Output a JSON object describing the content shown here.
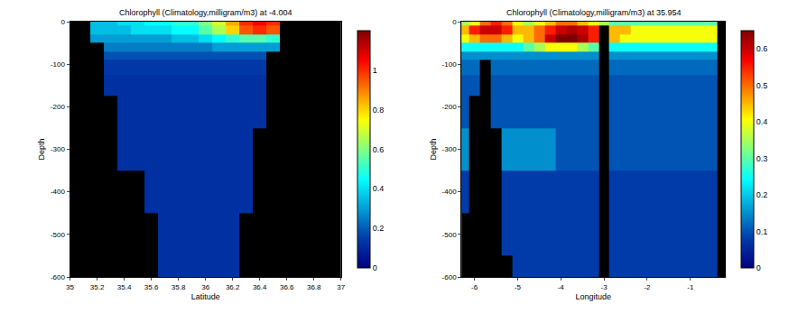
{
  "chart_data": [
    {
      "type": "heatmap",
      "title": "Chlorophyll (Climatology,milligram/m3) at -4.004",
      "x_label": "Latitude",
      "y_label": "Depth",
      "color": "Jet",
      "xlim": [
        35,
        37
      ],
      "xticks": [
        35,
        35.2,
        35.4,
        35.6,
        35.8,
        36,
        36.2,
        36.4,
        36.6,
        36.8,
        37
      ],
      "ylim": [
        -600,
        0
      ],
      "yticks": [
        0,
        -100,
        -200,
        -300,
        -400,
        -500,
        -600
      ],
      "cells": {
        "x": [
          35,
          35.1,
          35.2,
          35.3,
          35.4,
          35.5,
          35.6,
          35.7,
          35.8,
          35.9,
          36,
          36.1,
          36.2,
          36.3,
          36.4,
          36.5,
          36.6,
          36.7,
          36.8,
          36.9,
          37
        ],
        "y": [
          0,
          -20,
          -40,
          -60,
          -80,
          -100,
          -150,
          -200,
          -300,
          -400,
          -500,
          -600
        ],
        "z": [
          [
            null,
            null,
            0.35,
            0.35,
            0.4,
            0.4,
            0.45,
            0.45,
            0.5,
            0.5,
            0.6,
            0.7,
            0.85,
            1.0,
            1.05,
            1.0,
            null,
            null,
            null,
            null,
            null
          ],
          [
            null,
            null,
            0.35,
            0.35,
            0.35,
            0.4,
            0.4,
            0.4,
            0.45,
            0.45,
            0.55,
            0.65,
            0.8,
            0.95,
            1.0,
            0.95,
            null,
            null,
            null,
            null,
            null
          ],
          [
            null,
            null,
            0.3,
            0.3,
            0.3,
            0.3,
            0.3,
            0.3,
            0.35,
            0.35,
            0.4,
            0.45,
            0.5,
            0.55,
            0.55,
            0.5,
            null,
            null,
            null,
            null,
            null
          ],
          [
            null,
            null,
            null,
            0.25,
            0.25,
            0.25,
            0.25,
            0.25,
            0.25,
            0.25,
            0.25,
            0.3,
            0.3,
            0.3,
            0.3,
            0.3,
            null,
            null,
            null,
            null,
            null
          ],
          [
            null,
            null,
            null,
            0.18,
            0.18,
            0.18,
            0.18,
            0.18,
            0.18,
            0.18,
            0.18,
            0.18,
            0.18,
            0.18,
            0.18,
            null,
            null,
            null,
            null,
            null,
            null
          ],
          [
            null,
            null,
            null,
            0.14,
            0.14,
            0.14,
            0.14,
            0.14,
            0.14,
            0.14,
            0.14,
            0.14,
            0.14,
            0.14,
            0.14,
            null,
            null,
            null,
            null,
            null,
            null
          ],
          [
            null,
            null,
            null,
            0.12,
            0.12,
            0.12,
            0.12,
            0.12,
            0.12,
            0.12,
            0.12,
            0.12,
            0.12,
            0.12,
            0.12,
            null,
            null,
            null,
            null,
            null,
            null
          ],
          [
            null,
            null,
            null,
            null,
            0.12,
            0.12,
            0.12,
            0.12,
            0.12,
            0.12,
            0.12,
            0.12,
            0.12,
            0.12,
            0.12,
            null,
            null,
            null,
            null,
            null,
            null
          ],
          [
            null,
            null,
            null,
            null,
            0.12,
            0.12,
            0.12,
            0.12,
            0.12,
            0.12,
            0.12,
            0.12,
            0.12,
            0.12,
            null,
            null,
            null,
            null,
            null,
            null,
            null
          ],
          [
            null,
            null,
            null,
            null,
            null,
            null,
            0.12,
            0.12,
            0.12,
            0.12,
            0.12,
            0.12,
            0.12,
            0.12,
            null,
            null,
            null,
            null,
            null,
            null,
            null
          ],
          [
            null,
            null,
            null,
            null,
            null,
            null,
            null,
            0.12,
            0.12,
            0.12,
            0.12,
            0.12,
            0.12,
            null,
            null,
            null,
            null,
            null,
            null,
            null,
            null
          ],
          [
            null,
            null,
            null,
            null,
            null,
            null,
            null,
            0.12,
            0.12,
            0.12,
            0.12,
            0.12,
            0.12,
            null,
            null,
            null,
            null,
            null,
            null,
            null,
            null
          ]
        ]
      },
      "colorbar": {
        "range": [
          0,
          1.2
        ],
        "ticks": [
          0,
          0.2,
          0.4,
          0.6,
          0.8,
          1
        ]
      }
    },
    {
      "type": "heatmap",
      "title": "Chlorophyll (Climatology,milligram/m3) at 35.954",
      "x_label": "Longitude",
      "y_label": "Depth",
      "color": "Jet",
      "xlim": [
        -6.3,
        -0.2
      ],
      "xticks": [
        -6,
        -5,
        -4,
        -3,
        -2,
        -1
      ],
      "ylim": [
        -600,
        0
      ],
      "yticks": [
        0,
        -100,
        -200,
        -300,
        -400,
        -500,
        -600
      ],
      "cells": {
        "x": [
          -6.25,
          -6,
          -5.75,
          -5.5,
          -5.25,
          -5,
          -4.75,
          -4.5,
          -4.25,
          -4,
          -3.75,
          -3.5,
          -3.25,
          -3,
          -2.75,
          -2.5,
          -2.25,
          -2,
          -1.75,
          -1.5,
          -1.25,
          -1,
          -0.75,
          -0.5,
          -0.25
        ],
        "y": [
          0,
          -20,
          -40,
          -60,
          -80,
          -100,
          -150,
          -200,
          -300,
          -400,
          -500,
          -600
        ],
        "z": [
          [
            0.35,
            0.4,
            0.5,
            0.55,
            0.5,
            0.4,
            0.35,
            0.4,
            0.45,
            0.5,
            0.5,
            0.45,
            0.4,
            0.35,
            0.3,
            0.3,
            0.3,
            0.3,
            0.3,
            0.3,
            0.3,
            0.3,
            0.3,
            0.3,
            null
          ],
          [
            0.45,
            0.55,
            0.6,
            0.6,
            0.55,
            0.45,
            0.45,
            0.5,
            0.55,
            0.6,
            0.62,
            0.6,
            0.55,
            null,
            0.45,
            0.45,
            0.4,
            0.4,
            0.4,
            0.4,
            0.4,
            0.4,
            0.4,
            0.4,
            null
          ],
          [
            0.4,
            0.45,
            0.5,
            0.5,
            0.45,
            0.4,
            0.45,
            0.5,
            0.6,
            0.65,
            0.65,
            0.62,
            0.55,
            null,
            0.45,
            0.4,
            0.4,
            0.4,
            0.4,
            0.4,
            0.4,
            0.4,
            0.4,
            0.4,
            null
          ],
          [
            0.25,
            0.25,
            0.25,
            0.25,
            0.25,
            0.25,
            0.3,
            0.35,
            0.4,
            0.4,
            0.4,
            0.35,
            0.3,
            null,
            0.25,
            0.25,
            0.25,
            0.25,
            0.25,
            0.25,
            0.25,
            0.25,
            0.25,
            0.25,
            null
          ],
          [
            0.15,
            0.15,
            0.15,
            0.15,
            0.15,
            0.15,
            0.15,
            0.15,
            0.15,
            0.15,
            0.15,
            0.15,
            0.15,
            null,
            0.15,
            0.15,
            0.15,
            0.15,
            0.15,
            0.15,
            0.15,
            0.15,
            0.15,
            0.15,
            null
          ],
          [
            0.12,
            0.12,
            null,
            0.12,
            0.12,
            0.12,
            0.12,
            0.12,
            0.12,
            0.12,
            0.12,
            0.12,
            0.12,
            null,
            0.12,
            0.12,
            0.12,
            0.12,
            0.12,
            0.12,
            0.12,
            0.12,
            0.12,
            0.12,
            null
          ],
          [
            0.1,
            0.1,
            null,
            0.1,
            0.1,
            0.1,
            0.1,
            0.1,
            0.1,
            0.1,
            0.1,
            0.1,
            0.1,
            null,
            0.1,
            0.1,
            0.1,
            0.1,
            0.1,
            0.1,
            0.1,
            0.1,
            0.1,
            0.1,
            null
          ],
          [
            0.1,
            null,
            null,
            0.1,
            0.1,
            0.1,
            0.1,
            0.1,
            0.1,
            0.1,
            0.1,
            0.1,
            0.1,
            null,
            0.1,
            0.1,
            0.1,
            0.1,
            0.1,
            0.1,
            0.1,
            0.1,
            0.1,
            0.1,
            null
          ],
          [
            0.15,
            null,
            null,
            null,
            0.15,
            0.15,
            0.15,
            0.15,
            0.15,
            0.1,
            0.1,
            0.1,
            0.1,
            null,
            0.1,
            0.1,
            0.1,
            0.1,
            0.1,
            0.1,
            0.1,
            0.1,
            0.1,
            0.1,
            null
          ],
          [
            0.08,
            null,
            null,
            null,
            0.08,
            0.08,
            0.08,
            0.08,
            0.08,
            0.08,
            0.08,
            0.08,
            0.08,
            null,
            0.08,
            0.08,
            0.08,
            0.08,
            0.08,
            0.08,
            0.08,
            0.08,
            0.08,
            0.08,
            null
          ],
          [
            null,
            null,
            null,
            null,
            0.08,
            0.08,
            0.08,
            0.08,
            0.08,
            0.08,
            0.08,
            0.08,
            0.08,
            null,
            0.08,
            0.08,
            0.08,
            0.08,
            0.08,
            0.08,
            0.08,
            0.08,
            0.08,
            0.08,
            null
          ],
          [
            null,
            null,
            null,
            null,
            null,
            0.08,
            0.08,
            0.08,
            0.08,
            0.08,
            0.08,
            0.08,
            0.08,
            null,
            0.08,
            0.08,
            0.08,
            0.08,
            0.08,
            0.08,
            0.08,
            0.08,
            0.08,
            0.08,
            null
          ]
        ]
      },
      "colorbar": {
        "range": [
          0,
          0.65
        ],
        "ticks": [
          0,
          0.1,
          0.2,
          0.3,
          0.4,
          0.5,
          0.6
        ]
      }
    }
  ]
}
